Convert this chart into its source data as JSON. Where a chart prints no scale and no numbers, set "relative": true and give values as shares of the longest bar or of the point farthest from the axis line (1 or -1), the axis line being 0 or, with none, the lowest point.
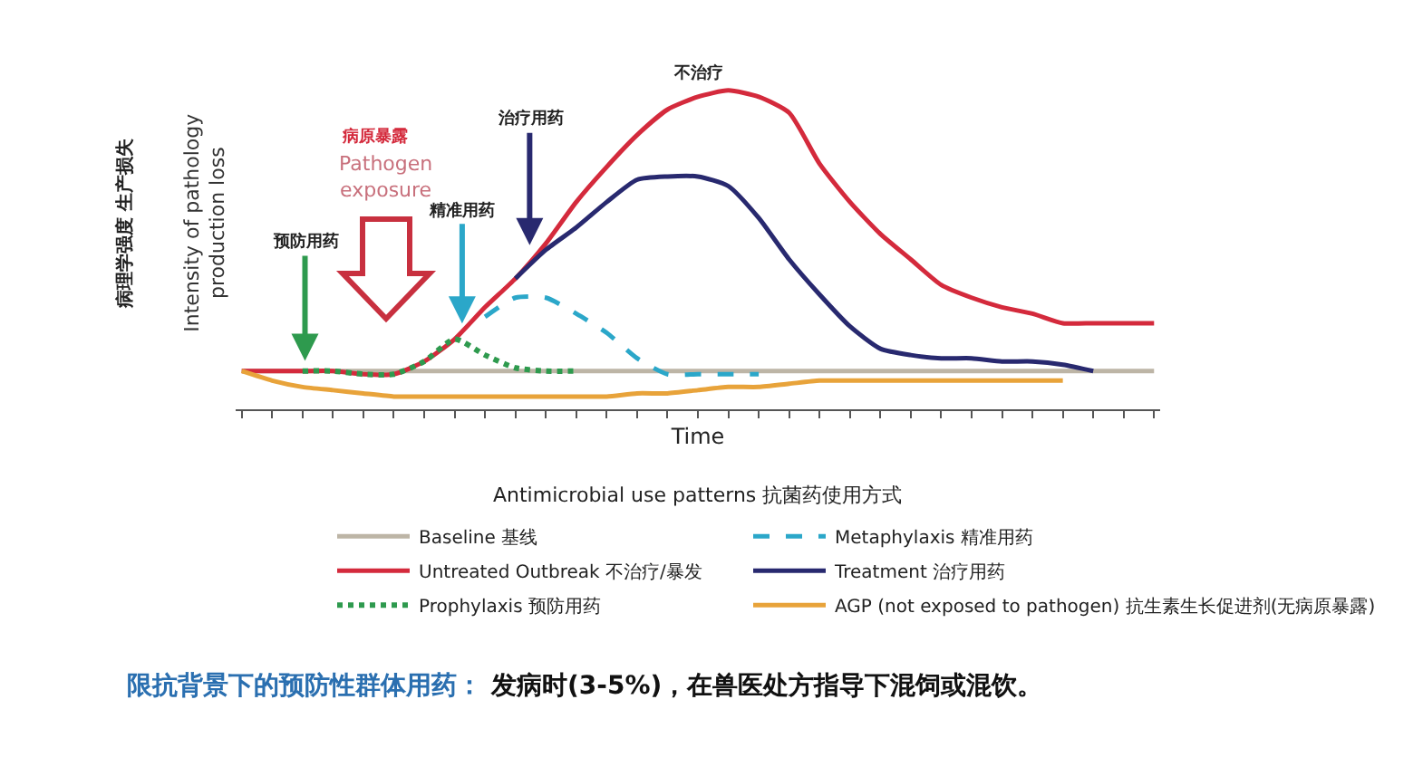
{
  "chart_data": {
    "type": "line",
    "relative": true,
    "xlabel": "Time",
    "ylabel": "Intensity of pathology\nproduction loss",
    "legend_title": "Antimicrobial use patterns 抗菌药使用方式",
    "legend": "bottom",
    "grid": false,
    "marker": "none",
    "categories": [
      null,
      null,
      null,
      null,
      null,
      null,
      null,
      null,
      null,
      null,
      null,
      null,
      null,
      null,
      null,
      null,
      null,
      null,
      null,
      null,
      null,
      null,
      null,
      null,
      null,
      null,
      null,
      null,
      null,
      null,
      null
    ],
    "series": [
      {
        "name": "Baseline 基线",
        "color": "#bdb5a6",
        "line_style": "solid",
        "values": [
          0.12,
          0.12,
          0.12,
          0.12,
          0.12,
          0.12,
          0.12,
          0.12,
          0.12,
          0.12,
          0.12,
          0.12,
          0.12,
          0.12,
          0.12,
          0.12,
          0.12,
          0.12,
          0.12,
          0.12,
          0.12,
          0.12,
          0.12,
          0.12,
          0.12,
          0.12,
          0.12,
          0.12,
          0.12,
          0.12,
          0.12
        ]
      },
      {
        "name": "Metaphylaxis 精准用药",
        "color": "#2ba7c9",
        "line_style": "dashed",
        "values": [
          null,
          null,
          null,
          null,
          null,
          null,
          null,
          null,
          0.29,
          0.35,
          0.35,
          0.3,
          0.24,
          0.16,
          0.11,
          0.11,
          0.11,
          0.11,
          null,
          null,
          null,
          null,
          null,
          null,
          null,
          null,
          null,
          null,
          null,
          null,
          null
        ]
      },
      {
        "name": "Untreated Outbreak 不治疗/暴发",
        "color": "#d42a3c",
        "line_style": "solid",
        "values": [
          0.12,
          0.12,
          0.12,
          0.12,
          0.11,
          0.11,
          0.15,
          0.22,
          0.32,
          0.41,
          0.52,
          0.65,
          0.76,
          0.86,
          0.94,
          0.98,
          1,
          0.98,
          0.93,
          0.77,
          0.65,
          0.55,
          0.47,
          0.39,
          0.35,
          0.32,
          0.3,
          0.27,
          0.27,
          0.27,
          0.27
        ]
      },
      {
        "name": "Treatment 治疗用药",
        "color": "#28296f",
        "line_style": "solid",
        "values": [
          null,
          null,
          null,
          null,
          null,
          null,
          null,
          null,
          null,
          0.41,
          0.5,
          0.57,
          0.65,
          0.72,
          0.73,
          0.73,
          0.7,
          0.6,
          0.47,
          0.36,
          0.26,
          0.19,
          0.17,
          0.16,
          0.16,
          0.15,
          0.15,
          0.14,
          0.12,
          null,
          null
        ]
      },
      {
        "name": "Prophylaxis 预防用药",
        "color": "#2e9a4e",
        "line_style": "dotted",
        "values": [
          null,
          null,
          0.12,
          0.12,
          0.11,
          0.11,
          0.15,
          0.22,
          0.17,
          0.13,
          0.12,
          0.12,
          null,
          null,
          null,
          null,
          null,
          null,
          null,
          null,
          null,
          null,
          null,
          null,
          null,
          null,
          null,
          null,
          null,
          null,
          null
        ]
      },
      {
        "name": "AGP (not exposed to pathogen) 抗生素生长促进剂(无病原暴露)",
        "color": "#e8a33a",
        "line_style": "solid",
        "values": [
          0.12,
          0.09,
          0.07,
          0.06,
          0.05,
          0.04,
          0.04,
          0.04,
          0.04,
          0.04,
          0.04,
          0.04,
          0.04,
          0.05,
          0.05,
          0.06,
          0.07,
          0.07,
          0.08,
          0.09,
          0.09,
          0.09,
          0.09,
          0.09,
          0.09,
          0.09,
          0.09,
          0.09,
          null,
          null,
          null
        ]
      }
    ],
    "annotations": [
      "不治疗",
      "病原暴露",
      "Pathogen\nexposure",
      "治疗用药",
      "精准用药",
      "预防用药",
      "病理学强度 生产损失",
      "限抗背景下的预防性群体用药：",
      "发病时(3-5%)，在兽医处方指导下混饲或混饮。"
    ]
  }
}
